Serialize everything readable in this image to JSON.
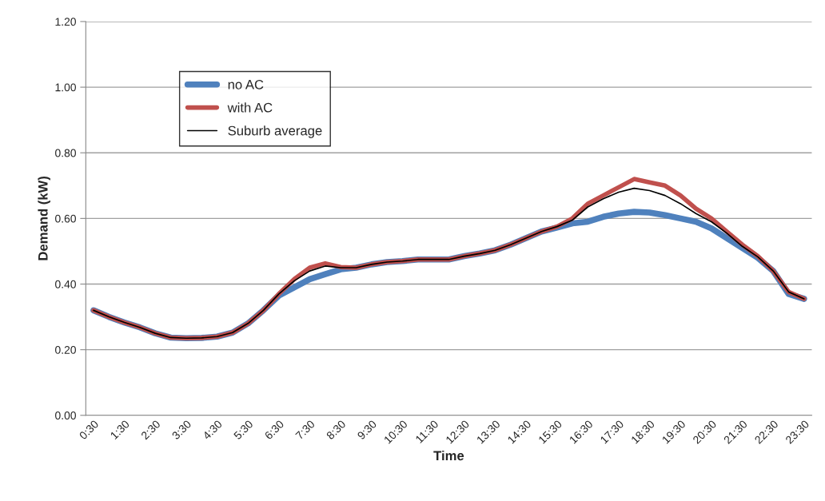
{
  "chart_data": {
    "type": "line",
    "xlabel": "Time",
    "ylabel": "Demand (kW)",
    "categories": [
      "0:30",
      null,
      "1:30",
      null,
      "2:30",
      null,
      "3:30",
      null,
      "4:30",
      null,
      "5:30",
      null,
      "6:30",
      null,
      "7:30",
      null,
      "8:30",
      null,
      "9:30",
      null,
      "10:30",
      null,
      "11:30",
      null,
      "12:30",
      null,
      "13:30",
      null,
      "14:30",
      null,
      "15:30",
      null,
      "16:30",
      null,
      "17:30",
      null,
      "18:30",
      null,
      "19:30",
      null,
      "20:30",
      null,
      "21:30",
      null,
      "22:30",
      null,
      "23:30"
    ],
    "series": [
      {
        "name": "no AC",
        "color": "#4f81bd",
        "values": [
          0.32,
          0.3,
          0.283,
          0.268,
          0.25,
          0.237,
          0.235,
          0.236,
          0.24,
          0.252,
          0.28,
          0.32,
          0.365,
          0.39,
          0.415,
          0.43,
          0.445,
          0.45,
          0.46,
          0.467,
          0.47,
          0.475,
          0.475,
          0.475,
          0.485,
          0.493,
          0.503,
          0.52,
          0.54,
          0.56,
          0.572,
          0.585,
          0.59,
          0.605,
          0.615,
          0.62,
          0.618,
          0.61,
          0.6,
          0.59,
          0.57,
          0.54,
          0.51,
          0.48,
          0.44,
          0.37,
          0.355
        ]
      },
      {
        "name": "with AC",
        "color": "#c0504d",
        "values": [
          0.32,
          0.3,
          0.283,
          0.268,
          0.25,
          0.237,
          0.235,
          0.236,
          0.24,
          0.252,
          0.28,
          0.32,
          0.37,
          0.415,
          0.45,
          0.463,
          0.452,
          0.45,
          0.46,
          0.467,
          0.47,
          0.475,
          0.475,
          0.475,
          0.485,
          0.493,
          0.503,
          0.52,
          0.54,
          0.56,
          0.575,
          0.6,
          0.645,
          0.67,
          0.695,
          0.72,
          0.71,
          0.7,
          0.67,
          0.63,
          0.6,
          0.56,
          0.52,
          0.485,
          0.44,
          0.376,
          0.355
        ]
      },
      {
        "name": "Suburb average",
        "color": "#000000",
        "values": [
          0.32,
          0.3,
          0.283,
          0.268,
          0.25,
          0.237,
          0.235,
          0.236,
          0.24,
          0.252,
          0.28,
          0.32,
          0.37,
          0.41,
          0.44,
          0.455,
          0.45,
          0.45,
          0.46,
          0.467,
          0.47,
          0.475,
          0.475,
          0.475,
          0.485,
          0.493,
          0.503,
          0.52,
          0.54,
          0.56,
          0.575,
          0.595,
          0.635,
          0.66,
          0.68,
          0.692,
          0.685,
          0.67,
          0.645,
          0.615,
          0.59,
          0.555,
          0.515,
          0.483,
          0.44,
          0.376,
          0.355
        ]
      }
    ],
    "ylim": [
      0,
      1.2
    ],
    "yticks": [
      {
        "value": 0,
        "label": "0.00"
      },
      {
        "value": 0.2,
        "label": "0.20"
      },
      {
        "value": 0.4,
        "label": "0.40"
      },
      {
        "value": 0.6,
        "label": "0.60"
      },
      {
        "value": 0.8,
        "label": "0.80"
      },
      {
        "value": 1.0,
        "label": "1.00"
      },
      {
        "value": 1.2,
        "label": "1.20"
      }
    ],
    "grid": "y",
    "legend": "top left",
    "marker": "none",
    "line_style": "solid"
  }
}
